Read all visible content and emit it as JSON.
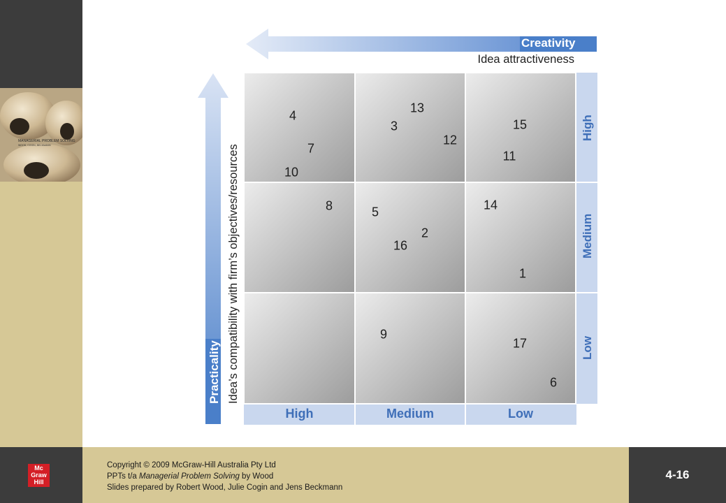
{
  "diagram": {
    "creativity_title": "Creativity",
    "creativity_subtitle": "Idea attractiveness",
    "practicality_title": "Practicality",
    "practicality_subtitle": "Idea’s compatibility with firm’s objectives/resources",
    "columns": [
      "High",
      "Medium",
      "Low"
    ],
    "rows": [
      "High",
      "Medium",
      "Low"
    ],
    "ideas": [
      "4",
      "7",
      "10",
      "13",
      "3",
      "12",
      "15",
      "11",
      "8",
      "5",
      "2",
      "16",
      "14",
      "1",
      "9",
      "17",
      "6"
    ],
    "colors": {
      "accent_blue": "#4a7fc9",
      "light_blue": "#c9d7ee",
      "level_text": "#3f6fb8"
    }
  },
  "footer": {
    "copyright_line1": "Copyright  2009 McGraw-Hill Australia Pty Ltd",
    "copyright_symbol": "©",
    "ppts_prefix": "PPTs t/a ",
    "ppts_title": "Managerial Problem Solving",
    "ppts_suffix": " by Wood",
    "prepared_by": "Slides prepared by Robert Wood, Julie Cogin and Jens Beckmann",
    "slide_number": "4-16",
    "logo_lines": [
      "Mc",
      "Graw",
      "Hill"
    ]
  },
  "cover": {
    "title": "MANAGERIAL PROBLEM SOLVING",
    "authors": "WOOD, COGIN, BECKMANN"
  }
}
